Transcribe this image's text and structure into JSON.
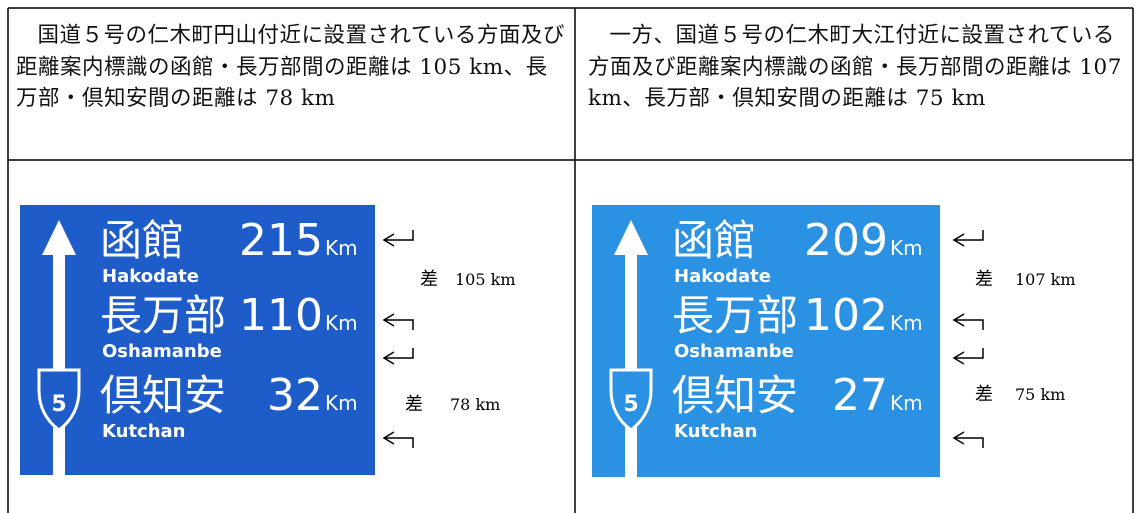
{
  "table": {
    "rows": [
      [
        "国道５号の仁木町円山付近に設置されている方面及び距離案内標識の函館・長万部間の距離は 105 km、長万部・倶知安間の距離は 78 km",
        "一方、国道５号の仁木町大江付近に設置されている方面及び距離案内標識の函館・長万部間の距離は 107 km、長万部・倶知安間の距離は 75 km"
      ]
    ]
  },
  "signs": [
    {
      "route": "5",
      "rows": [
        {
          "name": "函館",
          "romaji": "Hakodate",
          "distance": 215,
          "unit": "Km"
        },
        {
          "name": "長万部",
          "romaji": "Oshamanbe",
          "distance": 110,
          "unit": "Km"
        },
        {
          "name": "倶知安",
          "romaji": "Kutchan",
          "distance": 32,
          "unit": "Km"
        }
      ],
      "notes": [
        {
          "label": "差",
          "value": "105 km"
        },
        {
          "label": "差",
          "value": "78 km"
        }
      ]
    },
    {
      "route": "5",
      "rows": [
        {
          "name": "函館",
          "romaji": "Hakodate",
          "distance": 209,
          "unit": "Km"
        },
        {
          "name": "長万部",
          "romaji": "Oshamanbe",
          "distance": 102,
          "unit": "Km"
        },
        {
          "name": "倶知安",
          "romaji": "Kutchan",
          "distance": 27,
          "unit": "Km"
        }
      ],
      "notes": [
        {
          "label": "差",
          "value": "107 km"
        },
        {
          "label": "差",
          "value": "75 km"
        }
      ]
    }
  ]
}
